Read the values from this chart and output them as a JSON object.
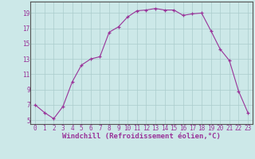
{
  "x": [
    0,
    1,
    2,
    3,
    4,
    5,
    6,
    7,
    8,
    9,
    10,
    11,
    12,
    13,
    14,
    15,
    16,
    17,
    18,
    19,
    20,
    21,
    22,
    23
  ],
  "y": [
    7,
    6,
    5.2,
    6.8,
    10,
    12.2,
    13,
    13.3,
    16.5,
    17.2,
    18.5,
    19.3,
    19.4,
    19.6,
    19.4,
    19.4,
    18.7,
    18.9,
    19.0,
    16.7,
    14.3,
    12.8,
    8.8,
    6.0
  ],
  "line_color": "#993399",
  "marker_color": "#993399",
  "bg_color": "#cce8e8",
  "grid_color": "#aacccc",
  "xlabel": "Windchill (Refroidissement éolien,°C)",
  "xlabel_color": "#993399",
  "xlim": [
    -0.5,
    23.5
  ],
  "ylim": [
    4.5,
    20.5
  ],
  "yticks": [
    5,
    7,
    9,
    11,
    13,
    15,
    17,
    19
  ],
  "xticks": [
    0,
    1,
    2,
    3,
    4,
    5,
    6,
    7,
    8,
    9,
    10,
    11,
    12,
    13,
    14,
    15,
    16,
    17,
    18,
    19,
    20,
    21,
    22,
    23
  ],
  "tick_fontsize": 5.5,
  "xlabel_fontsize": 6.5
}
